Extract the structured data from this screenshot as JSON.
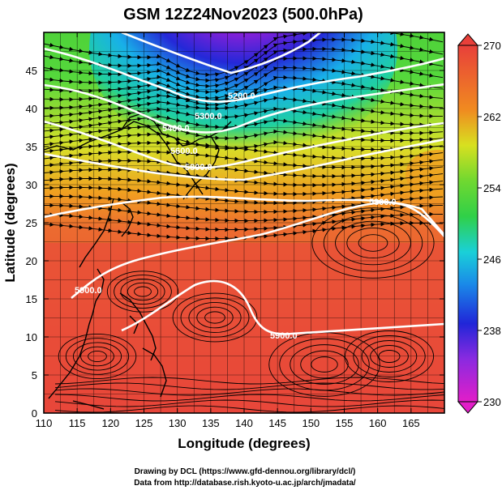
{
  "title": "GSM 12Z24Nov2023 (500.0hPa)",
  "xlabel": "Longitude (degrees)",
  "ylabel": "Latitude (degrees)",
  "xticks": [
    "110",
    "115",
    "120",
    "125",
    "130",
    "135",
    "140",
    "145",
    "150",
    "155",
    "160",
    "165"
  ],
  "yticks": [
    "0",
    "5",
    "10",
    "15",
    "20",
    "25",
    "30",
    "35",
    "40",
    "45"
  ],
  "colorbar": {
    "ticks": [
      "230",
      "238",
      "246",
      "254",
      "262",
      "270"
    ]
  },
  "contour_labels": [
    "5200.0",
    "5300.0",
    "5400.0",
    "5600.0",
    "5800.0",
    "5300.0",
    "5900.0",
    "5900.0"
  ],
  "credits": [
    "Drawing by DCL (https://www.gfd-dennou.org/library/dcl/)",
    "Data from http://database.rish.kyoto-u.ac.jp/arch/jmadata/"
  ],
  "chart_data": {
    "type": "heatmap",
    "variable_note": "temperature (shaded) with streamlines and height contours",
    "x_range": [
      110,
      170
    ],
    "y_range": [
      0,
      50
    ],
    "color_range": [
      230,
      270
    ],
    "contours": [
      5200,
      5300,
      5400,
      5600,
      5800,
      5900
    ]
  },
  "colors": {
    "magenta": "#e020c0",
    "blue": "#2a2ae0",
    "cyan": "#18c8e8",
    "green": "#48d030",
    "yellow": "#e8e020",
    "orange": "#f07a20",
    "red": "#e84a3a"
  }
}
